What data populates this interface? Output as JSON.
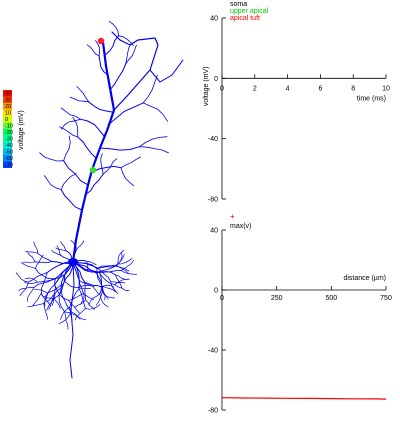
{
  "colorbar": {
    "label": "voltage (mV)",
    "ticks": [
      "40",
      "30",
      "20",
      "10",
      "0",
      "-10",
      "-20",
      "-30",
      "-40",
      "-50",
      "-60",
      "-70"
    ],
    "colors": [
      "#ff0000",
      "#ff4000",
      "#ff9900",
      "#ffdd00",
      "#ccff00",
      "#66ff33",
      "#00ff66",
      "#00ff99",
      "#00eecc",
      "#00bbee",
      "#0088ff",
      "#0044ff"
    ]
  },
  "neuron": {
    "color": "#0000ee",
    "markers": [
      {
        "label": "apical tuft",
        "color": "#ff2020"
      },
      {
        "label": "upper apical",
        "color": "#33dd33"
      }
    ]
  },
  "chart_data": [
    {
      "type": "line",
      "xlabel": "time (ms)",
      "ylabel": "voltage (mV)",
      "xlim": [
        0,
        10
      ],
      "ylim": [
        -80,
        40
      ],
      "xticks": [
        "0",
        "2",
        "4",
        "6",
        "8",
        "10"
      ],
      "yticks": [
        "40",
        "0",
        "-40",
        "-80"
      ],
      "legend": {
        "placement": "top-left",
        "entries": [
          {
            "name": "soma",
            "color": "#000000"
          },
          {
            "name": "upper apical",
            "color": "#00cc00"
          },
          {
            "name": "apical tuft",
            "color": "#ff0000"
          }
        ]
      },
      "series": []
    },
    {
      "type": "line",
      "xlabel": "distance (µm)",
      "ylabel": "",
      "xlim": [
        0,
        750
      ],
      "ylim": [
        -80,
        40
      ],
      "xticks": [
        "0",
        "250",
        "500",
        "750"
      ],
      "yticks": [
        "40",
        "0",
        "-40",
        "-80"
      ],
      "legend": {
        "placement": "top-left",
        "entries": [
          {
            "name": "max(v)",
            "color": "#ff0000",
            "marker": "+"
          }
        ]
      },
      "series": [
        {
          "name": "",
          "color": "#ff0000",
          "x": [
            0,
            100,
            200,
            300,
            400,
            500,
            600,
            700,
            750
          ],
          "y": [
            -71.8,
            -72.0,
            -72.1,
            -72.2,
            -72.3,
            -72.4,
            -72.5,
            -72.6,
            -72.7
          ]
        }
      ]
    }
  ]
}
